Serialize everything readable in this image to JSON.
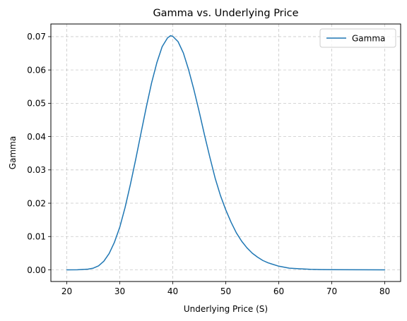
{
  "chart_data": {
    "type": "line",
    "title": "Gamma vs. Underlying Price",
    "xlabel": "Underlying Price (S)",
    "ylabel": "Gamma",
    "xlim": [
      17.0,
      83.0
    ],
    "ylim": [
      -0.0035,
      0.0738
    ],
    "xticks": [
      20,
      30,
      40,
      50,
      60,
      70,
      80
    ],
    "yticks": [
      0.0,
      0.01,
      0.02,
      0.03,
      0.04,
      0.05,
      0.06,
      0.07
    ],
    "xtick_labels": [
      "20",
      "30",
      "40",
      "50",
      "60",
      "70",
      "80"
    ],
    "ytick_labels": [
      "0.00",
      "0.01",
      "0.02",
      "0.03",
      "0.04",
      "0.05",
      "0.06",
      "0.07"
    ],
    "grid": true,
    "legend_position": "upper right",
    "series": [
      {
        "name": "Gamma",
        "color": "#1f77b4",
        "x": [
          20,
          22,
          24,
          25,
          26,
          27,
          28,
          29,
          30,
          31,
          32,
          33,
          34,
          35,
          36,
          37,
          38,
          39,
          39.6,
          40,
          41,
          42,
          43,
          44,
          45,
          46,
          47,
          48,
          49,
          50,
          51,
          52,
          53,
          54,
          55,
          56,
          57,
          58,
          60,
          62,
          64,
          66,
          68,
          70,
          75,
          80
        ],
        "y": [
          0.0,
          1e-05,
          0.0002,
          0.0005,
          0.0012,
          0.0026,
          0.0049,
          0.0083,
          0.0128,
          0.0187,
          0.0256,
          0.0331,
          0.041,
          0.0488,
          0.0561,
          0.0622,
          0.067,
          0.0696,
          0.0703,
          0.0701,
          0.0685,
          0.0651,
          0.06,
          0.054,
          0.0474,
          0.0404,
          0.0338,
          0.0275,
          0.0223,
          0.018,
          0.0143,
          0.0111,
          0.0086,
          0.0066,
          0.005,
          0.0038,
          0.0028,
          0.0021,
          0.0011,
          0.0005,
          0.0003,
          0.00015,
          8e-05,
          4e-05,
          1e-05,
          0.0
        ]
      }
    ]
  }
}
